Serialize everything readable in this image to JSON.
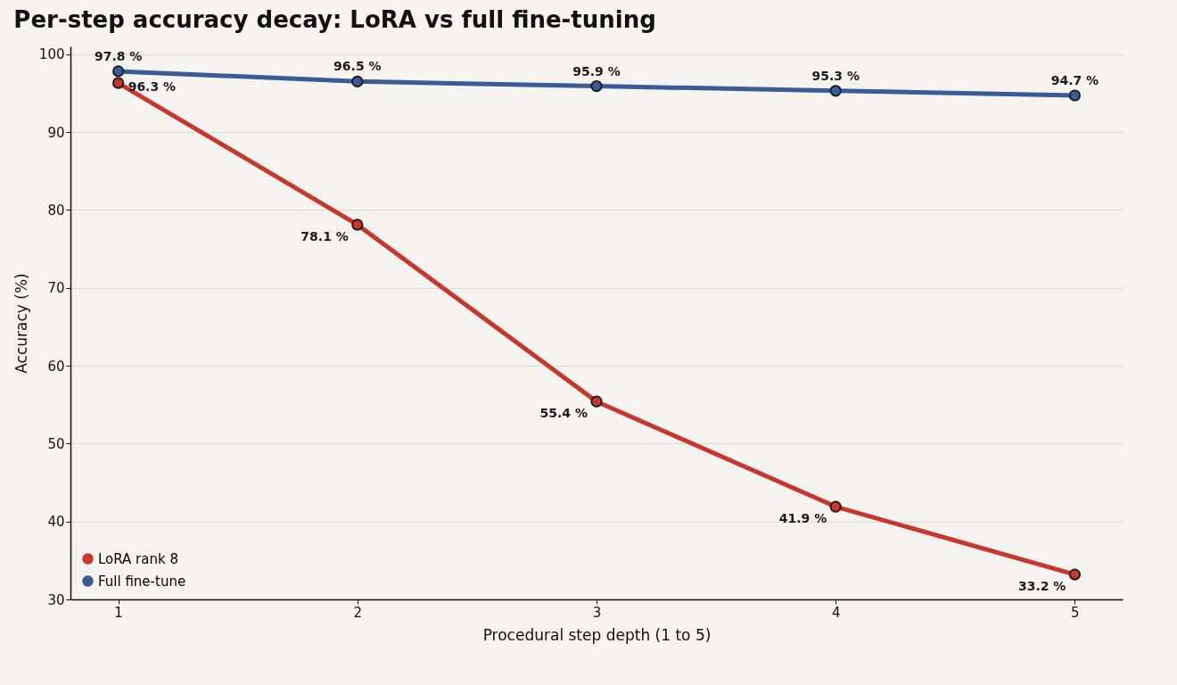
{
  "chart_data": {
    "type": "line",
    "title": "Per-step accuracy decay: LoRA vs full fine-tuning",
    "xlabel": "Procedural step depth (1 to 5)",
    "ylabel": "Accuracy (%)",
    "x": [
      1,
      2,
      3,
      4,
      5
    ],
    "xlim": [
      0.8,
      5.2
    ],
    "xticks": [
      1,
      2,
      3,
      4,
      5
    ],
    "ylim": [
      30,
      101
    ],
    "yticks": [
      30,
      40,
      50,
      60,
      70,
      80,
      90,
      100
    ],
    "series": [
      {
        "name": "LoRA rank 8",
        "color": "#c8372d",
        "values": [
          96.3,
          78.1,
          55.4,
          41.9,
          33.2
        ],
        "value_labels": [
          "96.3 %",
          "78.1 %",
          "55.4 %",
          "41.9 %",
          "33.2 %"
        ]
      },
      {
        "name": "Full fine-tune",
        "color": "#3a5a98",
        "values": [
          97.8,
          96.5,
          95.9,
          95.3,
          94.7
        ],
        "value_labels": [
          "97.8 %",
          "96.5 %",
          "95.9 %",
          "95.3 %",
          "94.7 %"
        ]
      }
    ],
    "grid": "y",
    "legend": "bottom left",
    "marker": "circle",
    "line_style": "solid"
  }
}
